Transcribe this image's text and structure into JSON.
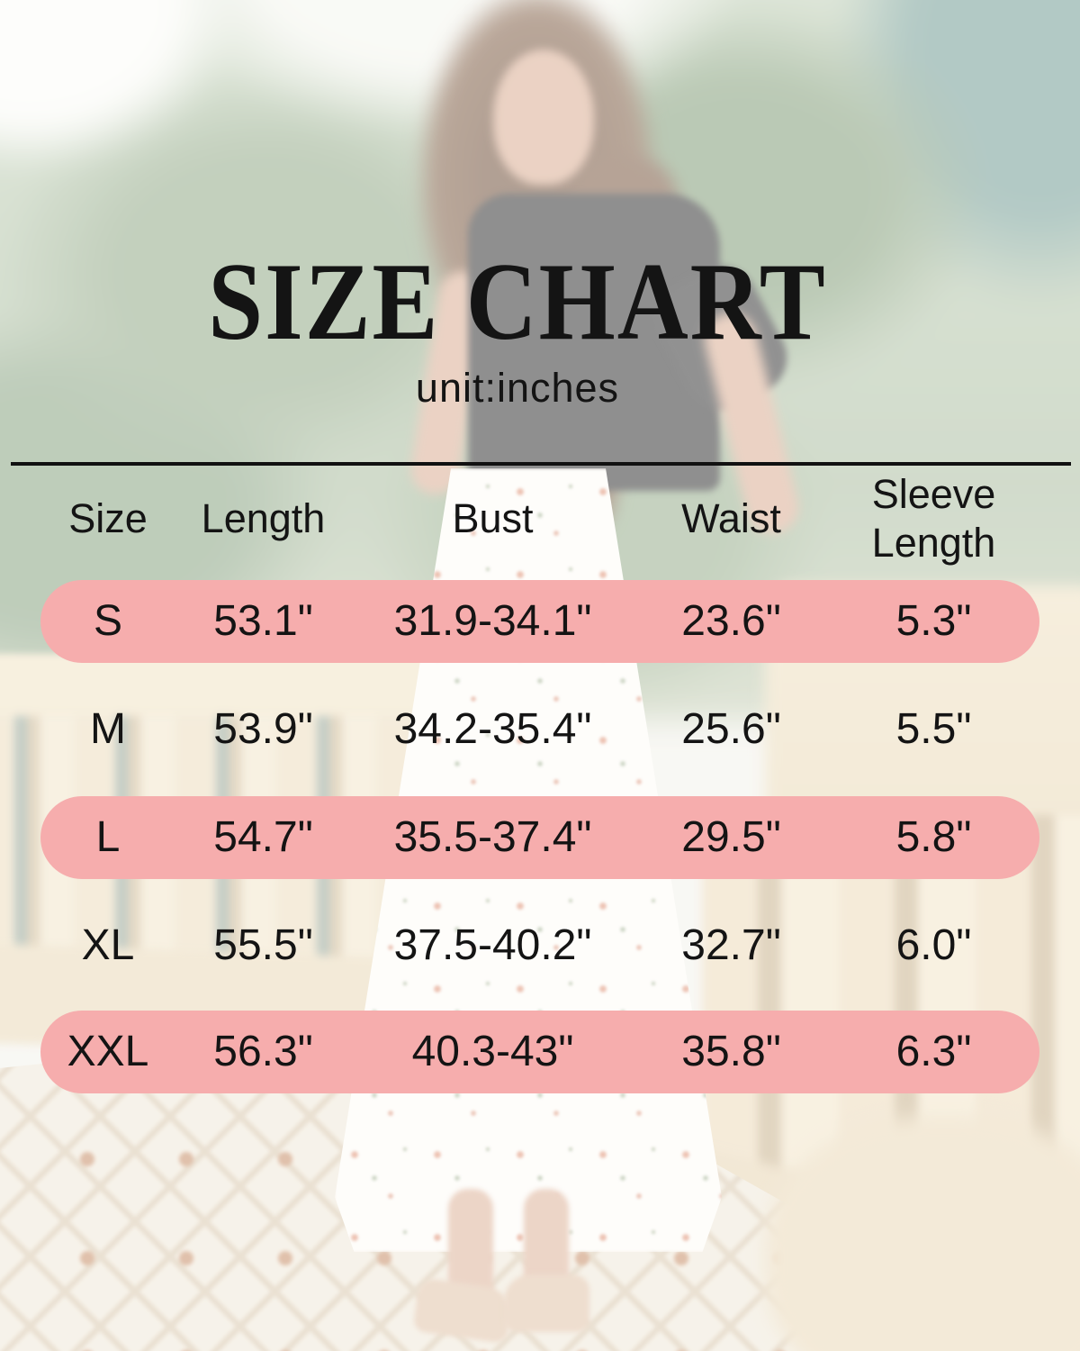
{
  "title": "SIZE CHART",
  "subtitle": "unit:inches",
  "colors": {
    "highlight_pink": "#f6adad",
    "text": "#141414",
    "divider": "#111111"
  },
  "photo": {
    "description_elements": [
      "model-in-black-top-floral-maxi-dress",
      "green-trees",
      "stone-balustrade",
      "tiled-terrace-floor"
    ]
  },
  "chart_data": {
    "type": "table",
    "title": "SIZE CHART",
    "unit": "inches",
    "columns": [
      "Size",
      "Length",
      "Bust",
      "Waist",
      "Sleeve Length"
    ],
    "rows": [
      [
        "S",
        "53.1\"",
        "31.9-34.1\"",
        "23.6\"",
        "5.3\""
      ],
      [
        "M",
        "53.9\"",
        "34.2-35.4\"",
        "25.6\"",
        "5.5\""
      ],
      [
        "L",
        "54.7\"",
        "35.5-37.4\"",
        "29.5\"",
        "5.8\""
      ],
      [
        "XL",
        "55.5\"",
        "37.5-40.2\"",
        "32.7\"",
        "6.0\""
      ],
      [
        "XXL",
        "56.3\"",
        "40.3-43\"",
        "35.8\"",
        "6.3\""
      ]
    ],
    "highlighted_rows": [
      "S",
      "L",
      "XXL"
    ],
    "layout_hints": {
      "grid": false,
      "header_divider": true,
      "row_highlight_shape": "pill"
    }
  }
}
